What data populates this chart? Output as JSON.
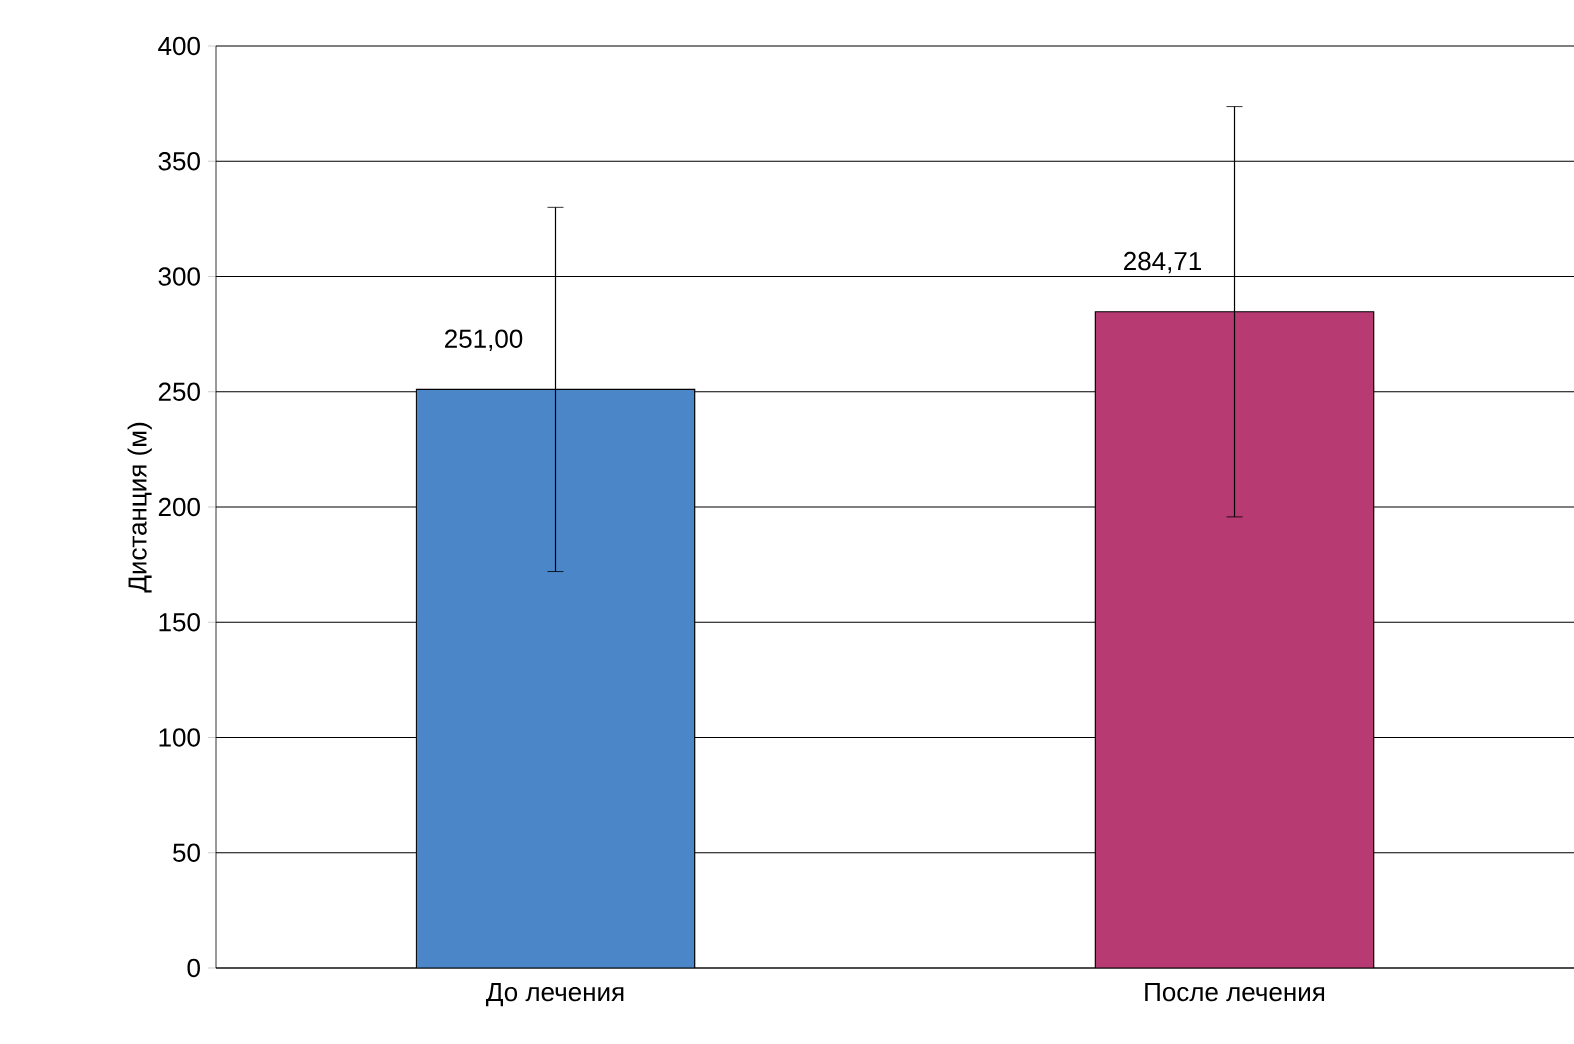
{
  "chart_data": {
    "type": "bar",
    "ylabel": "Дистанция (м)",
    "categories": [
      "До лечения",
      "После лечения"
    ],
    "values": [
      251,
      284.71
    ],
    "colors": [
      "#4a86c8",
      "#b83a72"
    ],
    "errors": [
      79,
      89
    ],
    "value_labels": [
      "251,00",
      "284,71"
    ],
    "ylim": [
      0,
      400
    ],
    "yticks": [
      0,
      50,
      100,
      150,
      200,
      250,
      300,
      350,
      400
    ],
    "grid": "y"
  }
}
